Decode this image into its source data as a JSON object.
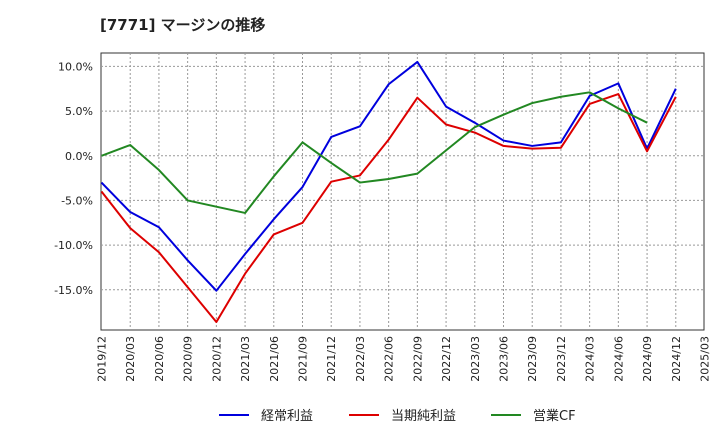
{
  "chart_data": {
    "type": "line",
    "title": "[7771]  マージンの推移",
    "xlabel": "",
    "ylabel": "",
    "categories": [
      "2019/12",
      "2020/03",
      "2020/06",
      "2020/09",
      "2020/12",
      "2021/03",
      "2021/06",
      "2021/09",
      "2021/12",
      "2022/03",
      "2022/06",
      "2022/09",
      "2022/12",
      "2023/03",
      "2023/06",
      "2023/09",
      "2023/12",
      "2024/03",
      "2024/06",
      "2024/09",
      "2024/12",
      "2025/03"
    ],
    "y_ticks": [
      "10.0%",
      "5.0%",
      "0.0%",
      "-5.0%",
      "-10.0%",
      "-15.0%"
    ],
    "y_tick_values": [
      10,
      5,
      0,
      -5,
      -10,
      -15
    ],
    "ylim": [
      -19.5,
      11.5
    ],
    "grid": true,
    "legend_position": "bottom",
    "series": [
      {
        "name": "経常利益",
        "color": "#0000dd",
        "values": [
          -3.0,
          -6.3,
          -8.0,
          -11.7,
          -15.1,
          -11.0,
          -7.1,
          -3.5,
          2.1,
          3.3,
          8.0,
          10.5,
          5.5,
          3.7,
          1.7,
          1.1,
          1.5,
          6.7,
          8.1,
          0.8,
          7.5,
          null
        ]
      },
      {
        "name": "当期純利益",
        "color": "#dd0000",
        "values": [
          -4.0,
          -8.1,
          -10.8,
          -14.7,
          -18.6,
          -13.2,
          -8.8,
          -7.5,
          -2.9,
          -2.2,
          1.8,
          6.5,
          3.5,
          2.6,
          1.1,
          0.8,
          0.9,
          5.8,
          6.9,
          0.5,
          6.6,
          null
        ]
      },
      {
        "name": "営業CF",
        "color": "#228822",
        "values": [
          0.0,
          1.2,
          -1.6,
          -5.0,
          -5.7,
          -6.4,
          -2.3,
          1.5,
          -0.8,
          -3.0,
          -2.6,
          -2.0,
          0.6,
          3.2,
          4.6,
          5.9,
          6.6,
          7.1,
          5.3,
          3.7,
          null,
          null
        ]
      }
    ]
  }
}
